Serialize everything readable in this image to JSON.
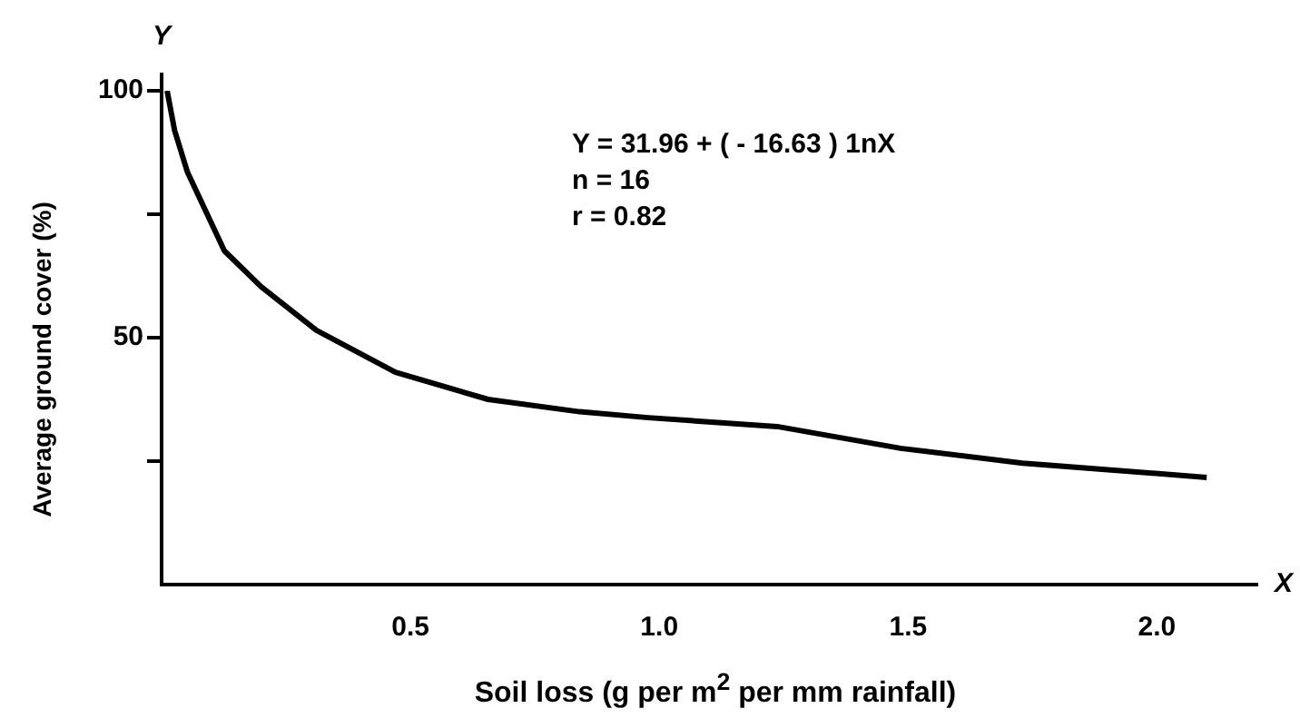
{
  "chart_data": {
    "type": "line",
    "xlabel": "Soil loss  (g per m$^{2}$ per mm rainfall)",
    "ylabel": "Average ground cover (%)",
    "annotations": [
      "Y",
      "X",
      "Y = 31.96 + ( - 16.63 ) 1nX",
      "n = 16",
      "r = 0.82"
    ],
    "x": [
      0.011,
      0.026,
      0.052,
      0.126,
      0.2,
      0.311,
      0.47,
      0.656,
      0.84,
      0.978,
      1.237,
      1.485,
      1.73,
      2.1
    ],
    "series": [
      {
        "color": "#000000",
        "values": [
          100,
          92,
          83.5,
          67.6,
          60.3,
          51.5,
          43,
          37.5,
          35,
          33.8,
          32,
          27.6,
          24.6,
          21.7
        ]
      }
    ],
    "xlim": [
      0,
      2.2
    ],
    "xticks": [
      0.5,
      {
        "value": 1,
        "label": "1.0"
      },
      1.5,
      {
        "value": 2,
        "label": "2.0"
      }
    ],
    "ylim": [
      0,
      100
    ],
    "yticks": [
      {
        "value": 25,
        "label": null
      },
      {
        "value": 50,
        "label": "50"
      },
      {
        "value": 75,
        "label": null
      },
      {
        "value": 100,
        "label": "100"
      }
    ],
    "marker": "none",
    "line_style": "solid",
    "legend": false
  }
}
